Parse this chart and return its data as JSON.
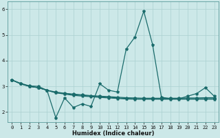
{
  "title": "",
  "xlabel": "Humidex (Indice chaleur)",
  "ylabel": "",
  "background_color": "#cce8e8",
  "grid_color": "#aad0d0",
  "line_color": "#1a6b6b",
  "xlim": [
    -0.5,
    23.5
  ],
  "ylim": [
    1.6,
    6.3
  ],
  "yticks": [
    2,
    3,
    4,
    5,
    6
  ],
  "xticks": [
    0,
    1,
    2,
    3,
    4,
    5,
    6,
    7,
    8,
    9,
    10,
    11,
    12,
    13,
    14,
    15,
    16,
    17,
    18,
    19,
    20,
    21,
    22,
    23
  ],
  "series": [
    [
      3.25,
      3.12,
      3.02,
      3.0,
      2.85,
      1.78,
      2.55,
      2.18,
      2.32,
      2.22,
      3.1,
      2.85,
      2.78,
      4.45,
      4.92,
      5.92,
      4.62,
      2.58,
      2.52,
      2.52,
      2.62,
      2.72,
      2.95,
      2.62
    ],
    [
      3.25,
      3.1,
      3.0,
      2.95,
      2.85,
      2.75,
      2.7,
      2.65,
      2.62,
      2.6,
      2.57,
      2.55,
      2.53,
      2.51,
      2.5,
      2.5,
      2.5,
      2.5,
      2.5,
      2.5,
      2.5,
      2.5,
      2.5,
      2.5
    ],
    [
      3.25,
      3.1,
      3.0,
      2.95,
      2.85,
      2.75,
      2.72,
      2.68,
      2.65,
      2.62,
      2.6,
      2.58,
      2.55,
      2.53,
      2.52,
      2.51,
      2.51,
      2.51,
      2.51,
      2.51,
      2.52,
      2.52,
      2.52,
      2.52
    ],
    [
      3.25,
      3.1,
      3.0,
      2.95,
      2.85,
      2.78,
      2.73,
      2.7,
      2.67,
      2.64,
      2.62,
      2.6,
      2.58,
      2.56,
      2.55,
      2.54,
      2.54,
      2.54,
      2.54,
      2.54,
      2.55,
      2.55,
      2.56,
      2.56
    ]
  ],
  "marker": "*",
  "markersize": 3.0,
  "linewidth": 0.9,
  "figsize": [
    3.2,
    2.0
  ],
  "dpi": 100,
  "tick_fontsize": 5.0,
  "xlabel_fontsize": 6.0
}
